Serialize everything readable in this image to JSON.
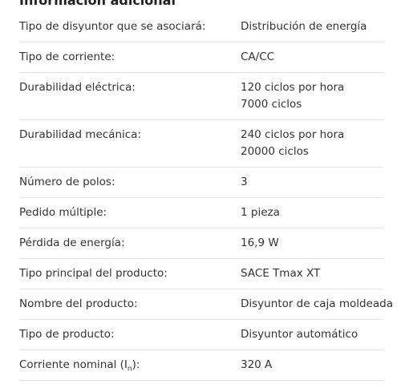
{
  "heading": "Información adicional",
  "rows": [
    {
      "label": "Tipo de disyuntor que se asociará:",
      "value": [
        "Distribución de energía"
      ]
    },
    {
      "label": "Tipo de corriente:",
      "value": [
        "CA/CC"
      ]
    },
    {
      "label": "Durabilidad eléctrica:",
      "value": [
        "120 ciclos por hora",
        "7000 ciclos"
      ]
    },
    {
      "label": "Durabilidad mecánica:",
      "value": [
        "240 ciclos por hora",
        "20000 ciclos"
      ]
    },
    {
      "label": "Número de polos:",
      "value": [
        "3"
      ]
    },
    {
      "label": "Pedido múltiple:",
      "value": [
        "1 pieza"
      ]
    },
    {
      "label": "Pérdida de energía:",
      "value": [
        "16,9 W"
      ]
    },
    {
      "label": "Tipo principal del producto:",
      "value": [
        "SACE Tmax XT"
      ]
    },
    {
      "label": "Nombre del producto:",
      "value": [
        "Disyuntor de caja moldeada"
      ]
    },
    {
      "label": "Tipo de producto:",
      "value": [
        "Disyuntor automático"
      ]
    },
    {
      "label": "Corriente nominal (I",
      "label_sub": "n",
      "label_end": "):",
      "value": [
        "320 A"
      ]
    }
  ]
}
